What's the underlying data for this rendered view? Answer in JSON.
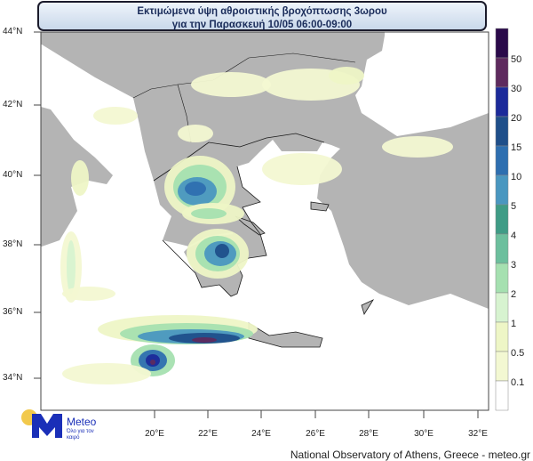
{
  "title": {
    "line1": "Εκτιμώμενα ύψη αθροιστικής βροχόπτωσης 3ωρου",
    "line2": "για την Παρασκευή 10/05 06:00-09:00"
  },
  "axes": {
    "lat_labels": [
      "44°N",
      "42°N",
      "40°N",
      "38°N",
      "36°N",
      "34°N"
    ],
    "lon_labels": [
      "20°E",
      "22°E",
      "24°E",
      "26°E",
      "28°E",
      "30°E",
      "32°E"
    ]
  },
  "colorbar": {
    "unit_labels": [
      "50",
      "30",
      "20",
      "15",
      "10",
      "5",
      "4",
      "3",
      "2",
      "1",
      "0.5",
      "0.1"
    ],
    "colors": [
      "#2a0a4a",
      "#5e2a5e",
      "#1c2a9a",
      "#1f4f8a",
      "#2e6fb0",
      "#4a97c0",
      "#3f9c86",
      "#6cbf9d",
      "#a5e0b0",
      "#d7f3d0",
      "#eef6c6",
      "#f3f8d2",
      "#ffffff"
    ]
  },
  "map_colors": {
    "land": "#b4b4b4",
    "sea": "#ffffff",
    "border": "#1a1a1a"
  },
  "logo": {
    "name": "Meteo",
    "tagline": "Όλο για τον καιρό",
    "blue": "#1a2fb8",
    "yellow": "#f2c94c"
  },
  "footer": "National Observatory of Athens, Greece - meteo.gr"
}
